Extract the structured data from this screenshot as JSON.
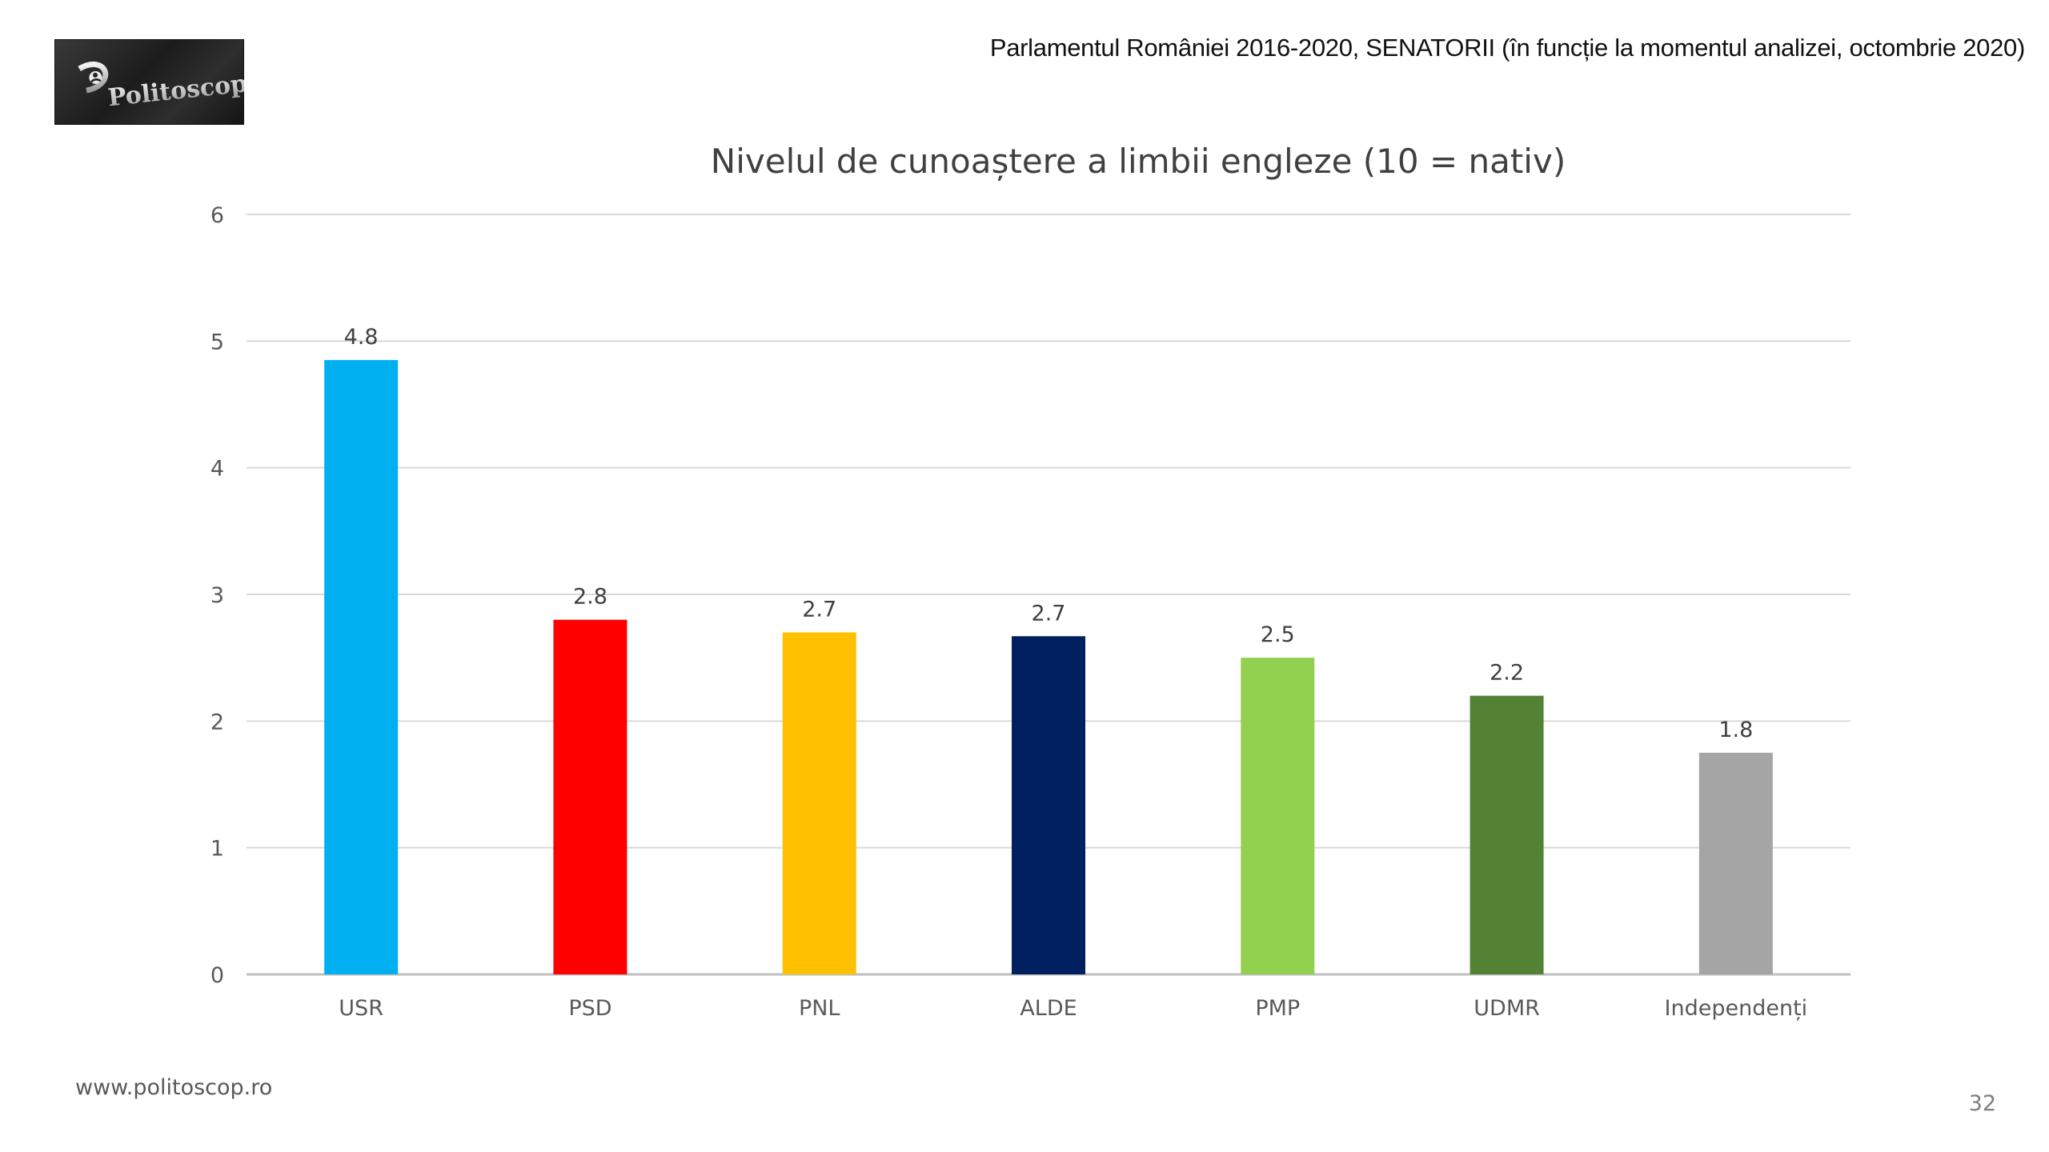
{
  "header": {
    "logo_text": "Politoscop",
    "note": "Parlamentul României 2016-2020, SENATORII (în funcție la momentul analizei, octombrie 2020)"
  },
  "footer": {
    "url": "www.politoscop.ro",
    "page_number": "32"
  },
  "chart_data": {
    "type": "bar",
    "title": "Nivelul de cunoaștere a limbii engleze (10 = nativ)",
    "xlabel": "",
    "ylabel": "",
    "categories": [
      "USR",
      "PSD",
      "PNL",
      "ALDE",
      "PMP",
      "UDMR",
      "Independenți"
    ],
    "values": [
      4.85,
      2.8,
      2.7,
      2.67,
      2.5,
      2.2,
      1.75
    ],
    "data_labels": [
      "4.8",
      "2.8",
      "2.7",
      "2.7",
      "2.5",
      "2.2",
      "1.8"
    ],
    "colors": [
      "#00b0f0",
      "#ff0000",
      "#ffc000",
      "#002060",
      "#92d050",
      "#548235",
      "#a5a5a5"
    ],
    "ylim": [
      0,
      6
    ],
    "yticks": [
      "0",
      "1",
      "2",
      "3",
      "4",
      "5",
      "6"
    ],
    "grid": true,
    "legend": "none"
  }
}
